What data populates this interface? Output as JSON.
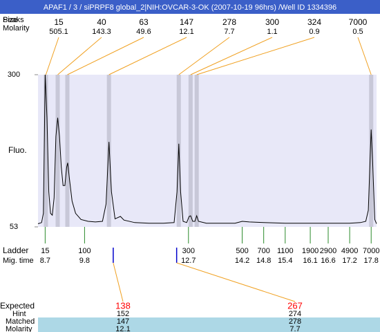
{
  "chart_data": {
    "type": "line",
    "title": "APAF1 / 3 / siPRPF8 global_2|NIH:OVCAR-3-OK (2007-10-19 96hrs) /Well ID 1334396",
    "size_label": "Size",
    "peaks_label": "Peaks",
    "molarity_label": "Molarity",
    "ylabel": "Fluo.",
    "ylim": [
      53,
      300
    ],
    "yticks": [
      53,
      300
    ],
    "xlim": [
      8.5,
      17.95
    ],
    "peaks": {
      "size": [
        15,
        40,
        63,
        147,
        278,
        300,
        324,
        7000
      ],
      "molarity": [
        505.1,
        143.3,
        49.6,
        12.1,
        7.7,
        1.1,
        0.9,
        0.5
      ],
      "mig_time": [
        8.72,
        9.05,
        9.32,
        10.48,
        12.43,
        12.76,
        12.93,
        17.8
      ]
    },
    "ladder": {
      "label": "Ladder",
      "time_label": "Mig. time",
      "size": [
        15,
        100,
        300,
        500,
        700,
        1100,
        1900,
        2900,
        4900,
        7000
      ],
      "mig_time": [
        8.7,
        9.8,
        12.7,
        14.2,
        14.8,
        15.4,
        16.1,
        16.6,
        17.2,
        17.8
      ]
    },
    "expected": {
      "label": "Expected",
      "hint_label": "Hint",
      "matched_label": "Matched",
      "molarity_label": "Molarity",
      "size": [
        138,
        267
      ],
      "hint": [
        152,
        274
      ],
      "matched": [
        147,
        278
      ],
      "molarity": [
        12.1,
        7.7
      ],
      "mig_time": [
        10.6,
        12.37
      ]
    },
    "trace": {
      "x": [
        8.5,
        8.6,
        8.65,
        8.7,
        8.75,
        8.8,
        8.85,
        8.9,
        8.95,
        9.0,
        9.05,
        9.1,
        9.15,
        9.2,
        9.25,
        9.3,
        9.33,
        9.38,
        9.45,
        9.55,
        9.7,
        9.9,
        10.1,
        10.3,
        10.4,
        10.48,
        10.55,
        10.65,
        10.8,
        10.9,
        11.2,
        11.6,
        12.0,
        12.3,
        12.38,
        12.43,
        12.48,
        12.55,
        12.65,
        12.72,
        12.76,
        12.82,
        12.88,
        12.93,
        12.98,
        13.2,
        13.6,
        14.0,
        14.2,
        14.4,
        14.8,
        15.4,
        16.0,
        16.6,
        17.2,
        17.5,
        17.65,
        17.72,
        17.78,
        17.8,
        17.84,
        17.9,
        17.95
      ],
      "y": [
        58,
        60,
        75,
        300,
        230,
        110,
        75,
        72,
        100,
        200,
        230,
        200,
        150,
        120,
        120,
        150,
        157,
        130,
        95,
        75,
        65,
        62,
        61,
        62,
        90,
        191,
        110,
        66,
        70,
        64,
        60,
        59,
        59,
        60,
        110,
        188,
        110,
        62,
        60,
        70,
        71,
        62,
        62,
        71,
        62,
        59,
        59,
        59,
        62,
        61,
        60,
        59,
        59,
        59,
        59,
        60,
        62,
        80,
        180,
        211,
        160,
        65,
        58
      ]
    }
  }
}
